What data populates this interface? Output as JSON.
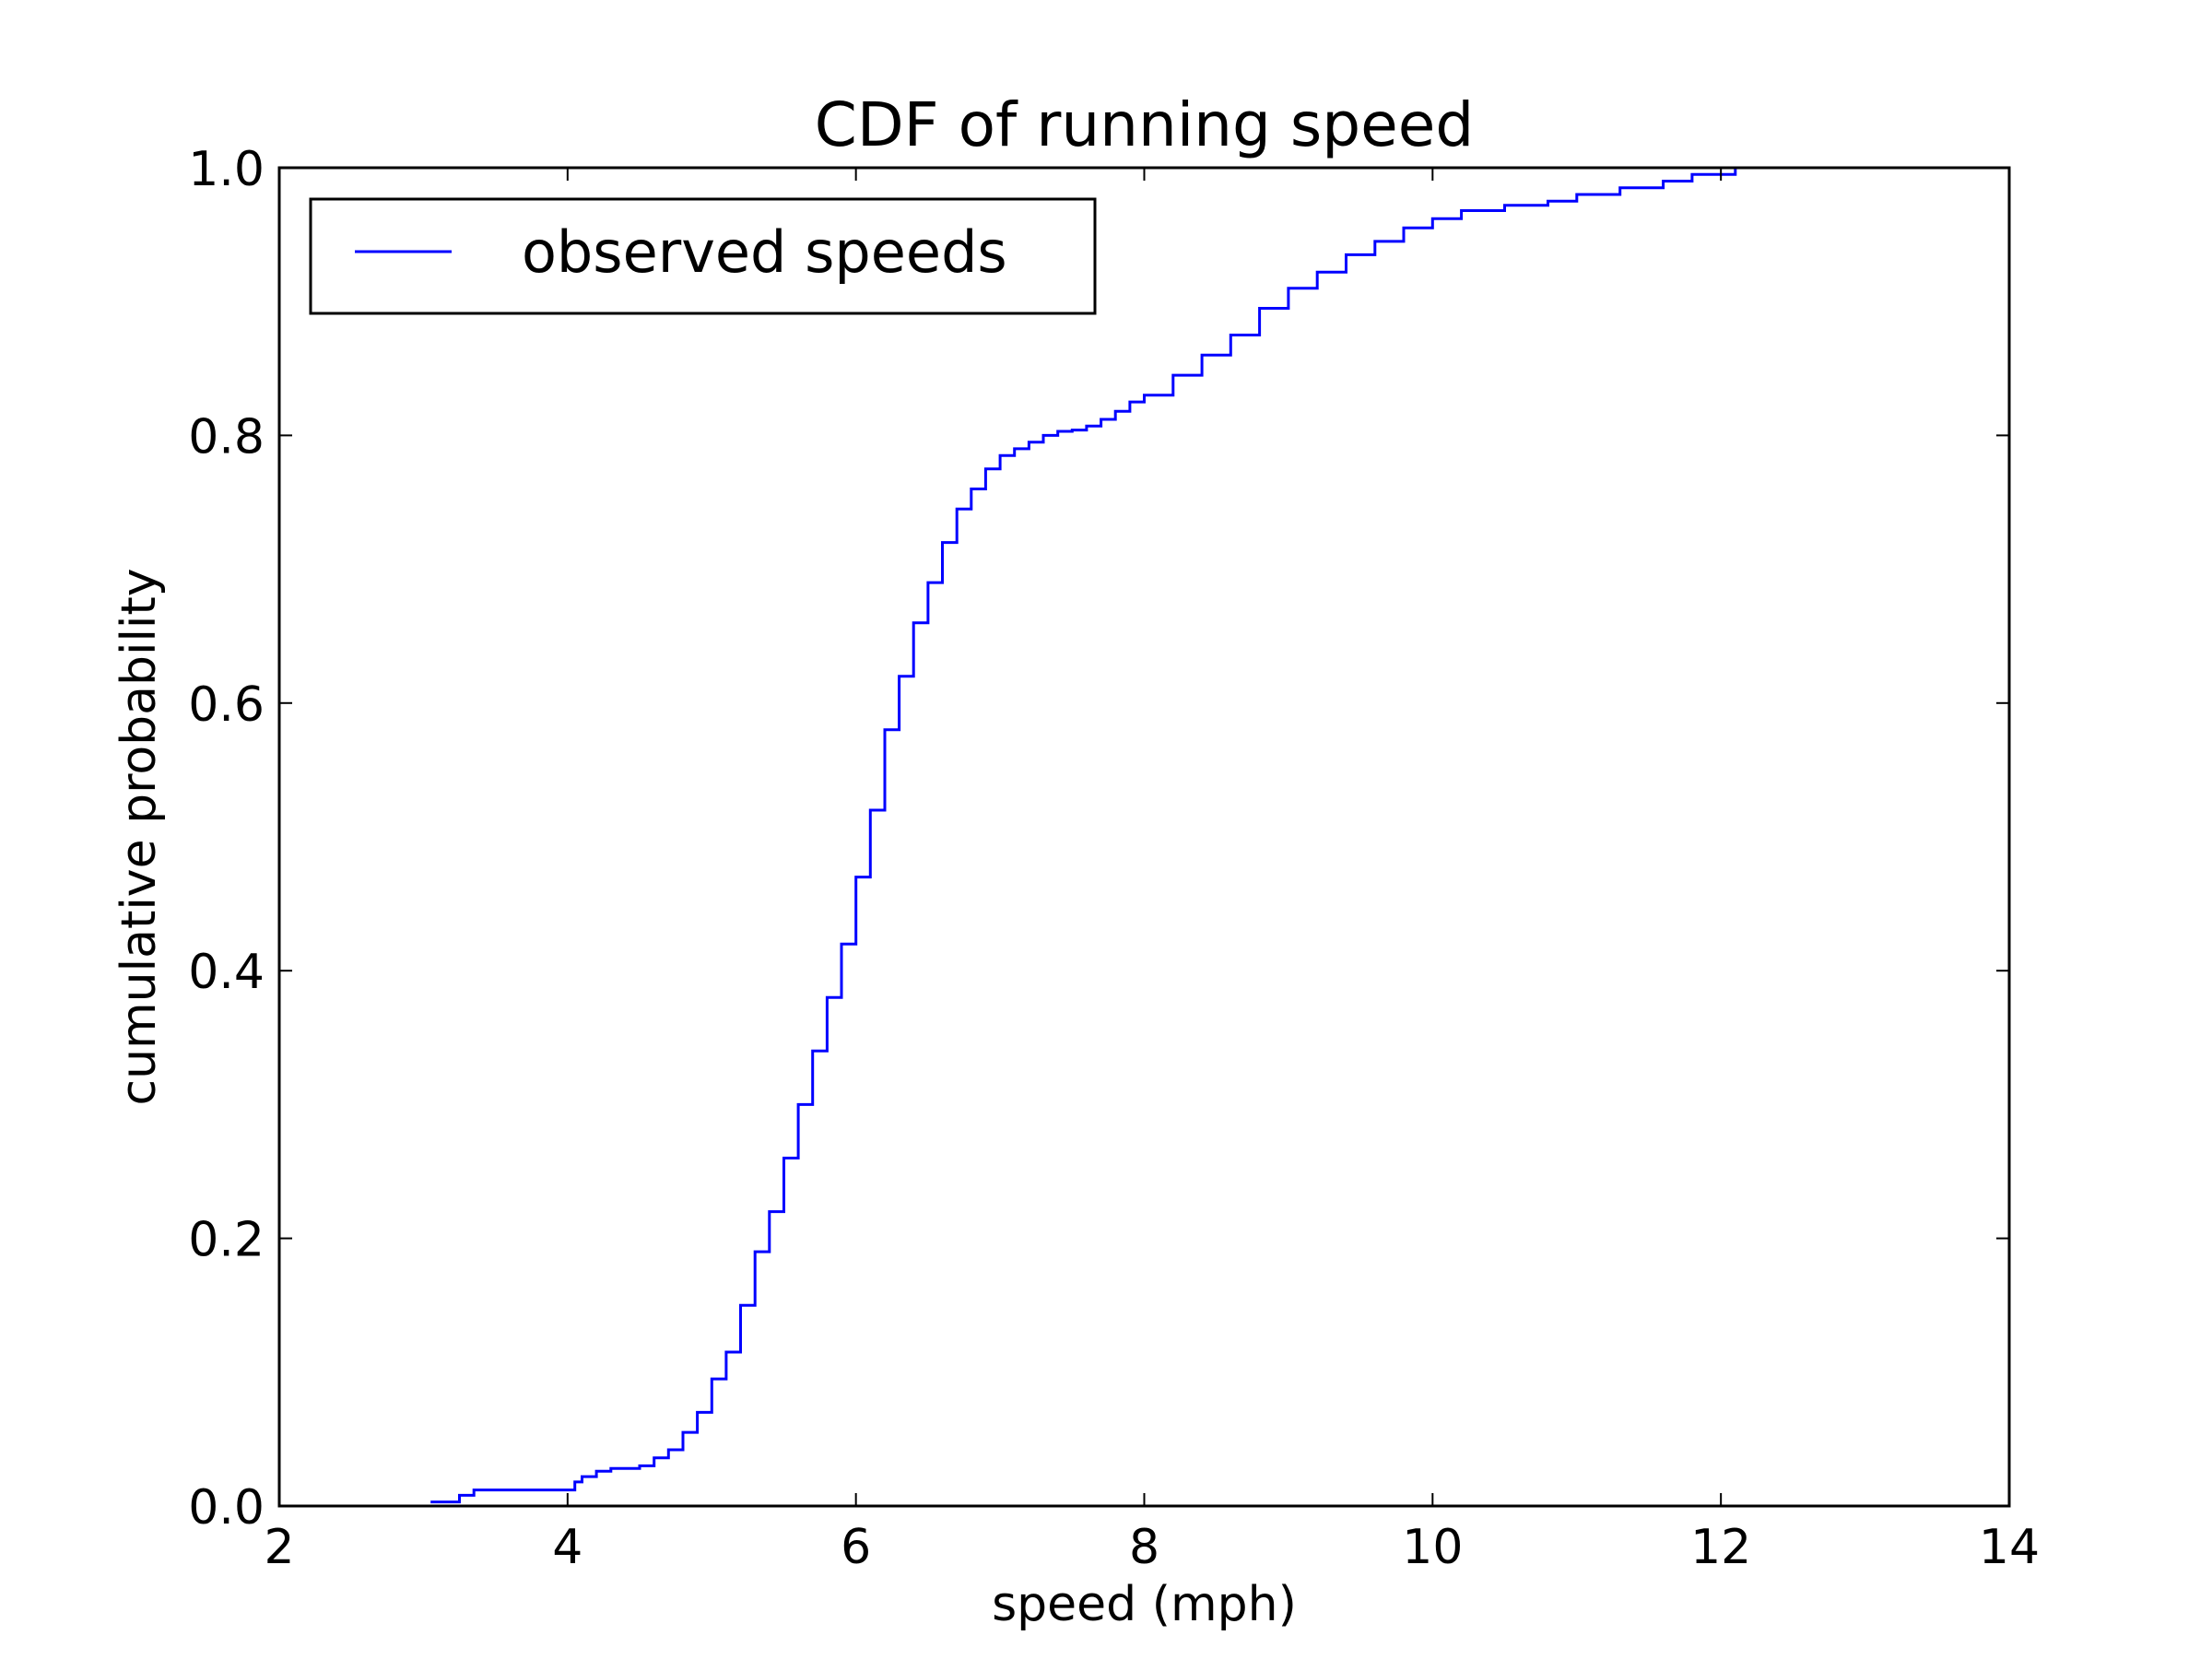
{
  "chart_data": {
    "type": "line",
    "title": "CDF of running speed",
    "xlabel": "speed (mph)",
    "ylabel": "cumulative probability",
    "xlim": [
      2,
      14
    ],
    "ylim": [
      0.0,
      1.0
    ],
    "xticks": [
      "2",
      "4",
      "6",
      "8",
      "10",
      "12",
      "14"
    ],
    "yticks": [
      "0.0",
      "0.2",
      "0.4",
      "0.6",
      "0.8",
      "1.0"
    ],
    "grid": false,
    "legend_position": "top-left",
    "series": [
      {
        "name": "observed speeds",
        "color": "#0000ff",
        "step": true,
        "x": [
          3.05,
          3.25,
          3.35,
          4.0,
          4.05,
          4.1,
          4.2,
          4.3,
          4.5,
          4.6,
          4.7,
          4.8,
          4.9,
          5.0,
          5.1,
          5.2,
          5.3,
          5.4,
          5.5,
          5.6,
          5.7,
          5.8,
          5.9,
          6.0,
          6.1,
          6.2,
          6.3,
          6.4,
          6.5,
          6.6,
          6.7,
          6.8,
          6.9,
          7.0,
          7.1,
          7.2,
          7.3,
          7.4,
          7.5,
          7.6,
          7.7,
          7.8,
          7.9,
          8.0,
          8.2,
          8.4,
          8.6,
          8.8,
          9.0,
          9.2,
          9.4,
          9.6,
          9.8,
          10.0,
          10.2,
          10.5,
          10.8,
          11.0,
          11.3,
          11.6,
          11.8,
          12.1
        ],
        "y": [
          0.003,
          0.008,
          0.012,
          0.012,
          0.018,
          0.022,
          0.026,
          0.028,
          0.03,
          0.036,
          0.042,
          0.055,
          0.07,
          0.095,
          0.115,
          0.15,
          0.19,
          0.22,
          0.26,
          0.3,
          0.34,
          0.38,
          0.42,
          0.47,
          0.52,
          0.58,
          0.62,
          0.66,
          0.69,
          0.72,
          0.745,
          0.76,
          0.775,
          0.785,
          0.79,
          0.795,
          0.8,
          0.803,
          0.804,
          0.807,
          0.812,
          0.818,
          0.825,
          0.83,
          0.845,
          0.86,
          0.875,
          0.895,
          0.91,
          0.922,
          0.935,
          0.945,
          0.955,
          0.962,
          0.968,
          0.972,
          0.975,
          0.98,
          0.985,
          0.99,
          0.995,
          1.0
        ]
      }
    ]
  }
}
